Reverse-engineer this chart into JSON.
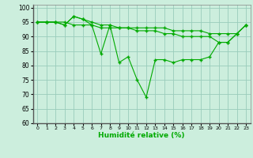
{
  "xlabel": "Humidité relative (%)",
  "background_color": "#cceedd",
  "line_color": "#00aa00",
  "grid_color": "#99ccbb",
  "xlim": [
    -0.5,
    23.5
  ],
  "ylim": [
    60,
    101
  ],
  "yticks": [
    60,
    65,
    70,
    75,
    80,
    85,
    90,
    95,
    100
  ],
  "xticks": [
    0,
    1,
    2,
    3,
    4,
    5,
    6,
    7,
    8,
    9,
    10,
    11,
    12,
    13,
    14,
    15,
    16,
    17,
    18,
    19,
    20,
    21,
    22,
    23
  ],
  "series1": [
    95,
    95,
    95,
    94,
    97,
    96,
    94,
    84,
    94,
    81,
    83,
    75,
    69,
    82,
    82,
    81,
    82,
    82,
    82,
    83,
    88,
    88,
    91,
    94
  ],
  "series2": [
    95,
    95,
    95,
    94,
    97,
    96,
    95,
    94,
    94,
    93,
    93,
    92,
    92,
    92,
    91,
    91,
    90,
    90,
    90,
    90,
    88,
    88,
    91,
    94
  ],
  "series3": [
    95,
    95,
    95,
    95,
    94,
    94,
    94,
    93,
    93,
    93,
    93,
    93,
    93,
    93,
    93,
    92,
    92,
    92,
    92,
    91,
    91,
    91,
    91,
    94
  ]
}
